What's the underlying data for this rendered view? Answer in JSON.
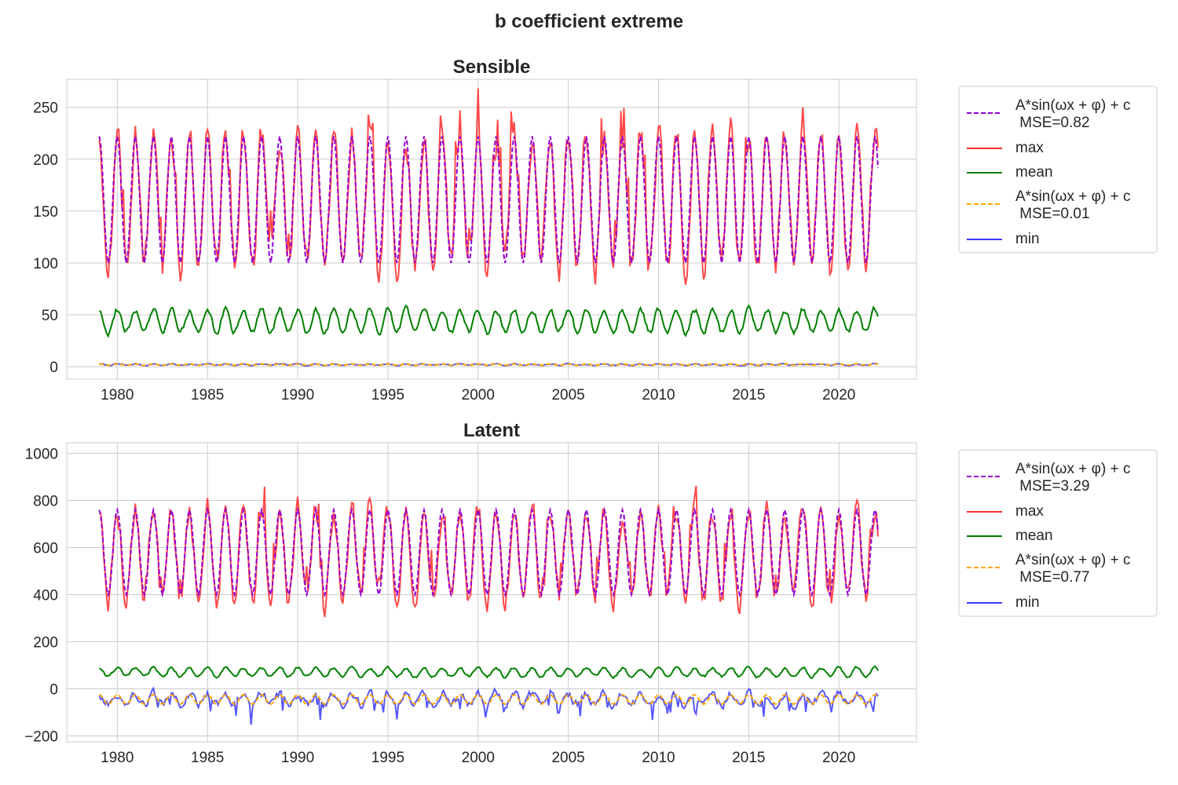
{
  "title": "b coefficient extreme",
  "colors": {
    "fit_max": "#9400d3",
    "max": "#ff2a2a",
    "mean": "#008000",
    "fit_min": "#ffa500",
    "min": "#3a3aff",
    "grid": "#cccccc",
    "frame": "#cccccc"
  },
  "chart_data": [
    {
      "type": "line",
      "title": "Sensible",
      "xlim": [
        1977.2,
        2024.3
      ],
      "ylim": [
        -12,
        277
      ],
      "xticks": [
        1980,
        1985,
        1990,
        1995,
        2000,
        2005,
        2010,
        2015,
        2020
      ],
      "yticks": [
        0,
        50,
        100,
        150,
        200,
        250
      ],
      "x_range": [
        1979.0,
        2022.2
      ],
      "legend_position": "outside-right",
      "series": [
        {
          "name": "A*sin(ωx + φ) + c",
          "mse_label": "MSE=0.82",
          "key": "fit_max",
          "style": "dashed",
          "amplitude": 61,
          "offset": 161,
          "noise": 0
        },
        {
          "name": "max",
          "key": "max",
          "style": "solid",
          "amplitude": 63,
          "offset": 161,
          "noise": 13,
          "peak_range": [
            205,
            263
          ],
          "trough_range": [
            86,
            112
          ]
        },
        {
          "name": "mean",
          "key": "mean",
          "style": "solid",
          "amplitude": 11,
          "offset": 44,
          "noise": 2.5,
          "peak_range": [
            50,
            64
          ],
          "trough_range": [
            30,
            36
          ]
        },
        {
          "name": "A*sin(ωx + φ) + c",
          "mse_label": "MSE=0.01",
          "key": "fit_min",
          "style": "dashed",
          "amplitude": 0.6,
          "offset": 2,
          "noise": 0
        },
        {
          "name": "min",
          "key": "min",
          "style": "solid",
          "amplitude": 0.6,
          "offset": 2,
          "noise": 0.5,
          "peak_range": [
            2,
            3
          ],
          "trough_range": [
            1,
            2
          ]
        }
      ]
    },
    {
      "type": "line",
      "title": "Latent",
      "xlim": [
        1977.2,
        2024.3
      ],
      "ylim": [
        -225,
        1045
      ],
      "xticks": [
        1980,
        1985,
        1990,
        1995,
        2000,
        2005,
        2010,
        2015,
        2020
      ],
      "yticks": [
        -200,
        0,
        200,
        400,
        600,
        800,
        1000
      ],
      "x_range": [
        1979.0,
        2022.2
      ],
      "legend_position": "outside-right",
      "series": [
        {
          "name": "A*sin(ωx + φ) + c",
          "mse_label": "MSE=3.29",
          "key": "fit_max",
          "style": "dashed",
          "amplitude": 180,
          "offset": 580,
          "noise": 0
        },
        {
          "name": "max",
          "key": "max",
          "style": "solid",
          "amplitude": 190,
          "offset": 570,
          "noise": 45,
          "peak_range": [
            700,
            985
          ],
          "trough_range": [
            290,
            400
          ]
        },
        {
          "name": "mean",
          "key": "mean",
          "style": "solid",
          "amplitude": 19,
          "offset": 70,
          "noise": 5,
          "peak_range": [
            80,
            100
          ],
          "trough_range": [
            50,
            60
          ]
        },
        {
          "name": "A*sin(ωx + φ) + c",
          "mse_label": "MSE=0.77",
          "key": "fit_min",
          "style": "dashed",
          "amplitude": 20,
          "offset": -45,
          "noise": 0
        },
        {
          "name": "min",
          "key": "min",
          "style": "solid",
          "amplitude": 22,
          "offset": -45,
          "noise": 16,
          "peak_range": [
            -30,
            -10
          ],
          "trough_range": [
            -170,
            -60
          ]
        }
      ]
    }
  ]
}
